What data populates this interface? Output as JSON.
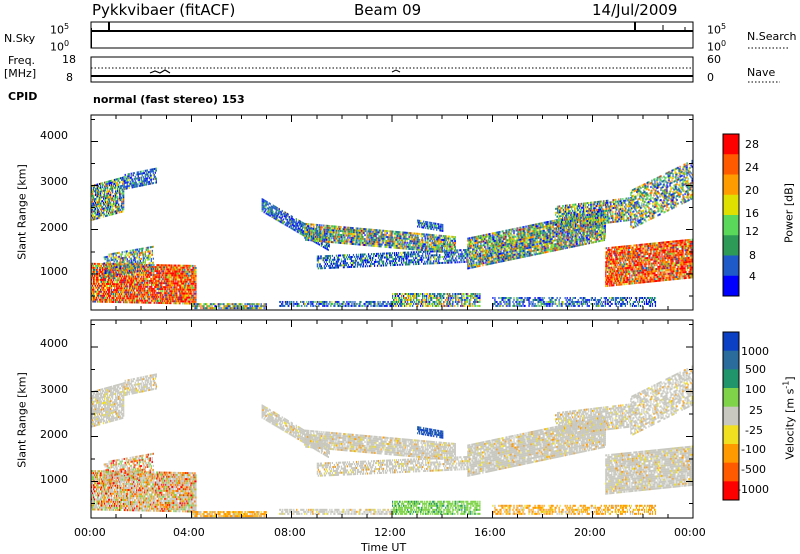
{
  "header": {
    "title": "Pykkvibaer (fitACF)",
    "beam": "Beam 09",
    "date": "14/Jul/2009"
  },
  "top_panel": {
    "left_label": "N.Sky",
    "right_label": "N.Search",
    "left_ticks": [
      "10^5",
      "10^0"
    ],
    "right_ticks": [
      "10^5",
      "10^0"
    ]
  },
  "freq_panel": {
    "left_label_1": "Freq.",
    "left_label_2": "[MHz]",
    "right_label": "Nave",
    "left_ticks": [
      "18",
      "8"
    ],
    "right_ticks": [
      "60",
      "0"
    ]
  },
  "cpid": {
    "label": "CPID",
    "value": "normal (fast stereo) 153"
  },
  "chart_data": [
    {
      "type": "heatmap",
      "name": "power",
      "ylabel": "Slant Range [km]",
      "colorbar_label": "Power [dB]",
      "colorbar_ticks": [
        "28",
        "24",
        "20",
        "16",
        "12",
        "8",
        "4"
      ],
      "colors": [
        "#ff0000",
        "#ff5a00",
        "#ff9c00",
        "#e0e000",
        "#5ad85a",
        "#2e9a58",
        "#1e5ac8",
        "#0000ff"
      ],
      "yticks": [
        "4000",
        "3000",
        "2000",
        "1000"
      ],
      "yrange_km": [
        180,
        4600
      ],
      "xrange_hours": [
        0,
        24
      ]
    },
    {
      "type": "heatmap",
      "name": "velocity",
      "ylabel": "Slant Range [km]",
      "colorbar_label": "Velocity [m s^-1]",
      "colorbar_ticks": [
        "1000",
        "500",
        "100",
        "25",
        "-25",
        "-100",
        "-500",
        "-1000"
      ],
      "colors": [
        "#0b3fc4",
        "#2a6d9c",
        "#20946a",
        "#7ed348",
        "#c8c8c0",
        "#f0e020",
        "#ff9a00",
        "#ff5a00",
        "#ff0000"
      ],
      "yticks": [
        "4000",
        "3000",
        "2000",
        "1000"
      ],
      "yrange_km": [
        180,
        4600
      ],
      "xrange_hours": [
        0,
        24
      ]
    }
  ],
  "x_axis": {
    "ticks": [
      "00:00",
      "04:00",
      "08:00",
      "12:00",
      "16:00",
      "20:00",
      "00:00"
    ],
    "label": "Time UT"
  }
}
